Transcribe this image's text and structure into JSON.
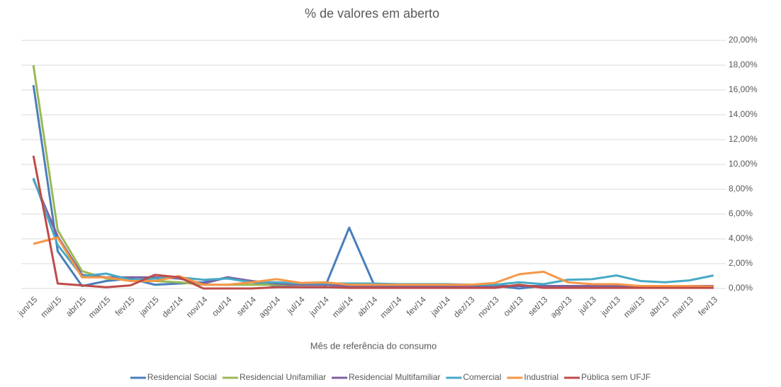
{
  "chart_data": {
    "type": "line",
    "title": "% de valores em aberto",
    "x_label": "Mês de referência do consumo",
    "categories": [
      "jun/15",
      "mai/15",
      "abr/15",
      "mar/15",
      "fev/15",
      "jan/15",
      "dez/14",
      "nov/14",
      "out/14",
      "set/14",
      "ago/14",
      "jul/14",
      "jun/14",
      "mai/14",
      "abr/14",
      "mar/14",
      "fev/14",
      "jan/14",
      "dez/13",
      "nov/13",
      "out/13",
      "set/13",
      "ago/13",
      "jul/13",
      "jun/13",
      "mai/13",
      "abr/13",
      "mar/13",
      "fev/13"
    ],
    "series": [
      {
        "name": "Residencial Social",
        "color": "#4a7ebb",
        "values": [
          16.4,
          3.0,
          0.2,
          0.6,
          0.8,
          0.3,
          0.4,
          0.5,
          0.9,
          0.5,
          0.2,
          0.1,
          0.1,
          4.9,
          0.4,
          0.3,
          0.3,
          0.3,
          0.2,
          0.2,
          0.0,
          0.2,
          0.1,
          0.1,
          0.1,
          0.1,
          0.1,
          0.1,
          0.1
        ]
      },
      {
        "name": "Residencial Unifamiliar",
        "color": "#98b954",
        "values": [
          18.0,
          4.7,
          1.4,
          0.8,
          0.7,
          0.6,
          0.5,
          0.3,
          0.3,
          0.3,
          0.3,
          0.3,
          0.3,
          0.2,
          0.2,
          0.2,
          0.2,
          0.2,
          0.2,
          0.2,
          0.2,
          0.2,
          0.2,
          0.2,
          0.2,
          0.2,
          0.2,
          0.2,
          0.2
        ]
      },
      {
        "name": "Residencial Multifamiliar",
        "color": "#7d60a0",
        "values": [
          8.8,
          4.2,
          1.1,
          0.9,
          0.9,
          0.9,
          0.8,
          0.4,
          0.9,
          0.6,
          0.4,
          0.3,
          0.3,
          0.2,
          0.2,
          0.2,
          0.2,
          0.2,
          0.2,
          0.2,
          0.2,
          0.2,
          0.2,
          0.2,
          0.2,
          0.2,
          0.2,
          0.2,
          0.2
        ]
      },
      {
        "name": "Comercial",
        "color": "#46aac5",
        "values": [
          8.9,
          3.5,
          1.0,
          1.2,
          0.7,
          0.8,
          0.9,
          0.7,
          0.8,
          0.5,
          0.5,
          0.4,
          0.4,
          0.4,
          0.4,
          0.35,
          0.35,
          0.35,
          0.3,
          0.3,
          0.5,
          0.35,
          0.7,
          0.75,
          1.05,
          0.6,
          0.5,
          0.65,
          1.05
        ]
      },
      {
        "name": "Industrial",
        "color": "#f79646",
        "values": [
          3.6,
          4.1,
          0.9,
          0.9,
          0.6,
          0.6,
          1.0,
          0.3,
          0.3,
          0.5,
          0.75,
          0.45,
          0.5,
          0.3,
          0.3,
          0.3,
          0.3,
          0.3,
          0.3,
          0.45,
          1.15,
          1.35,
          0.5,
          0.35,
          0.35,
          0.2,
          0.2,
          0.2,
          0.15
        ]
      },
      {
        "name": "Pública sem UFJF",
        "color": "#be4b48",
        "values": [
          10.7,
          0.4,
          0.25,
          0.1,
          0.25,
          1.1,
          0.9,
          0.0,
          0.0,
          0.0,
          0.1,
          0.1,
          0.1,
          0.05,
          0.05,
          0.05,
          0.05,
          0.05,
          0.05,
          0.05,
          0.3,
          0.05,
          0.05,
          0.05,
          0.05,
          0.05,
          0.05,
          0.05,
          0.05
        ]
      }
    ],
    "ylim": [
      0,
      20
    ],
    "yticks": [
      {
        "value": 0,
        "label": "0,00%"
      },
      {
        "value": 2,
        "label": "2,00%"
      },
      {
        "value": 4,
        "label": "4,00%"
      },
      {
        "value": 6,
        "label": "6,00%"
      },
      {
        "value": 8,
        "label": "8,00%"
      },
      {
        "value": 10,
        "label": "10,00%"
      },
      {
        "value": 12,
        "label": "12,00%"
      },
      {
        "value": 14,
        "label": "14,00%"
      },
      {
        "value": 16,
        "label": "16,00%"
      },
      {
        "value": 18,
        "label": "18,00%"
      },
      {
        "value": 20,
        "label": "20,00%"
      }
    ],
    "grid": true,
    "legend": "bottom"
  }
}
